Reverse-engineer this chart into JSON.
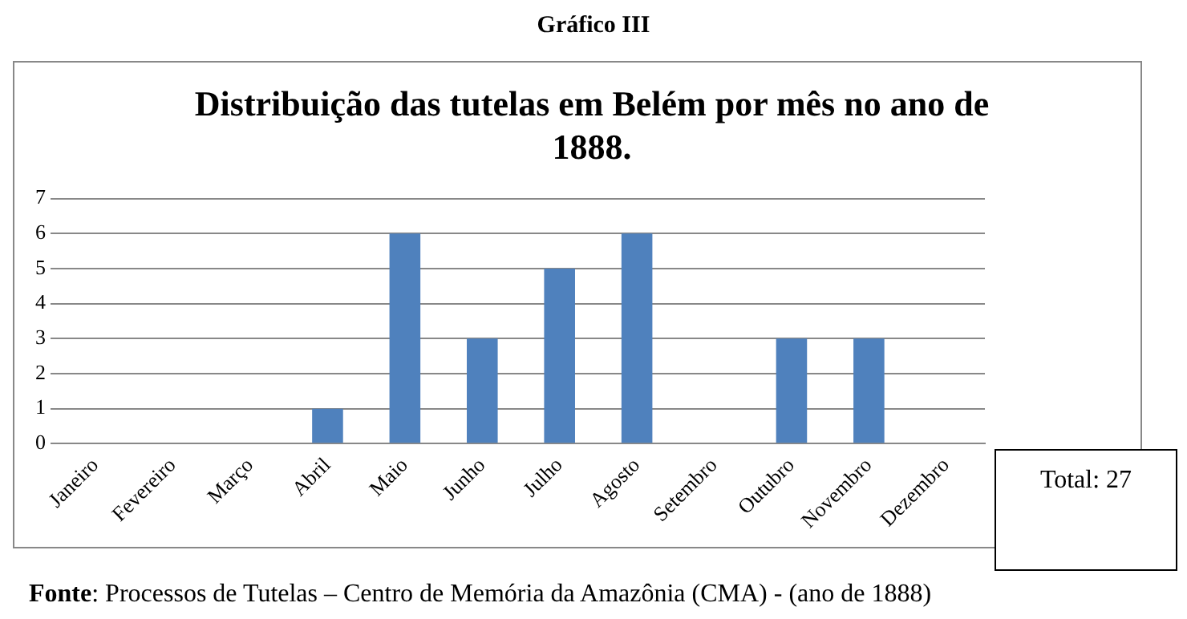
{
  "chart_data": {
    "type": "bar",
    "title": "Distribuição das tutelas em Belém por mês no ano de 1888.",
    "categories": [
      "Janeiro",
      "Fevereiro",
      "Março",
      "Abril",
      "Maio",
      "Junho",
      "Julho",
      "Agosto",
      "Setembro",
      "Outubro",
      "Novembro",
      "Dezembro"
    ],
    "values": [
      0,
      0,
      0,
      1,
      6,
      3,
      5,
      6,
      0,
      3,
      3,
      0
    ],
    "color": "#4f81bd",
    "ylim": [
      0,
      7
    ],
    "yticks": [
      0,
      1,
      2,
      3,
      4,
      5,
      6,
      7
    ],
    "grid": "y",
    "legend": false,
    "annotations": [
      "Gráfico III",
      "Total: 27",
      "Fonte: Processos de Tutelas – Centro de Memória da Amazônia (CMA) - (ano de 1888)"
    ]
  }
}
